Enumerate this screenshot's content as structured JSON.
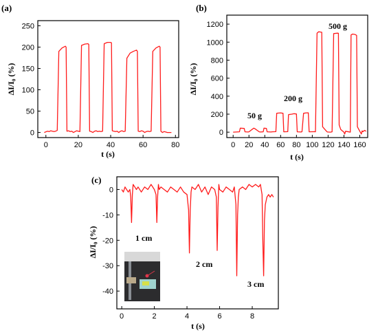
{
  "chart_data": [
    {
      "type": "line",
      "panel_label": "(a)",
      "xlabel": "t (s)",
      "ylabel": "ΔI/I₀ (%)",
      "xlim": [
        -5,
        82
      ],
      "ylim": [
        -12,
        262
      ],
      "xticks": [
        0,
        20,
        40,
        60,
        80
      ],
      "yticks": [
        0,
        50,
        100,
        150,
        200,
        250
      ],
      "color": "#ff1a1a",
      "grid": false,
      "series": [
        {
          "x": [
            -1,
            1,
            2,
            3,
            4,
            5,
            6,
            7,
            8,
            10,
            12,
            12.5,
            13,
            14,
            15,
            16,
            17,
            18,
            19,
            20,
            21,
            22,
            24,
            26,
            26.5,
            27,
            28,
            29,
            30,
            31,
            32,
            33,
            34,
            35,
            36,
            38,
            40,
            40.5,
            41,
            42,
            43,
            44,
            45,
            46,
            47,
            48,
            49,
            50,
            52,
            54,
            56,
            56.5,
            57,
            58,
            59,
            60,
            61,
            62,
            63,
            64,
            65,
            66,
            68,
            70,
            70.5,
            71,
            72,
            73,
            74,
            75,
            76,
            77.5
          ],
          "y": [
            0,
            3,
            2,
            4,
            3,
            2,
            3,
            5,
            190,
            198,
            202,
            200,
            3,
            4,
            2,
            3,
            0,
            2,
            4,
            3,
            2,
            204,
            207,
            208,
            206,
            3,
            2,
            0,
            3,
            4,
            2,
            3,
            2,
            3,
            208,
            211,
            211,
            210,
            4,
            3,
            2,
            3,
            0,
            3,
            4,
            2,
            3,
            174,
            186,
            190,
            193,
            190,
            3,
            2,
            4,
            3,
            0,
            2,
            3,
            2,
            3,
            190,
            198,
            202,
            200,
            3,
            0,
            2,
            1,
            0,
            0,
            0
          ]
        }
      ]
    },
    {
      "type": "line",
      "panel_label": "(b)",
      "xlabel": "t (s)",
      "ylabel": "ΔI/I₀ (%)",
      "xlim": [
        -8,
        170
      ],
      "ylim": [
        -60,
        1300
      ],
      "xticks": [
        0,
        20,
        40,
        60,
        80,
        100,
        120,
        140,
        160
      ],
      "yticks": [
        0,
        200,
        400,
        600,
        800,
        1000,
        1200
      ],
      "color": "#ff1a1a",
      "grid": false,
      "annotations": [
        "50 g",
        "200 g",
        "500 g"
      ],
      "series": [
        {
          "x": [
            0,
            4,
            8,
            9,
            14,
            15,
            19,
            20,
            26,
            27,
            33,
            34,
            38,
            39,
            42,
            43,
            48,
            49,
            54,
            55,
            57,
            60,
            63,
            64,
            69,
            70,
            74,
            77,
            80,
            81,
            86,
            87,
            89,
            92,
            95,
            96,
            103,
            104,
            106,
            108,
            112,
            113,
            118,
            119,
            123,
            125,
            127,
            132,
            133,
            134,
            136,
            140,
            141,
            142,
            148,
            149,
            151,
            154,
            156,
            157,
            160,
            162,
            163,
            164,
            166,
            168
          ],
          "y": [
            0,
            2,
            4,
            45,
            42,
            4,
            2,
            4,
            45,
            42,
            4,
            2,
            4,
            45,
            42,
            4,
            2,
            4,
            6,
            210,
            212,
            214,
            210,
            4,
            6,
            195,
            200,
            205,
            202,
            4,
            2,
            6,
            210,
            214,
            215,
            4,
            6,
            4,
            1100,
            1115,
            1110,
            60,
            10,
            2,
            0,
            4,
            1095,
            1100,
            1098,
            80,
            30,
            0,
            -20,
            10,
            0,
            1080,
            1090,
            1085,
            1075,
            60,
            10,
            -20,
            15,
            5,
            20,
            10
          ]
        }
      ]
    },
    {
      "type": "line",
      "panel_label": "(c)",
      "xlabel": "t (s)",
      "ylabel": "ΔI/I₀ (%)",
      "xlim": [
        -0.3,
        9.6
      ],
      "ylim": [
        -47,
        5
      ],
      "xticks": [
        0,
        2,
        4,
        6,
        8
      ],
      "yticks": [
        0,
        -10,
        -20,
        -30,
        -40
      ],
      "color": "#ff1a1a",
      "grid": false,
      "annotations": [
        "1 cm",
        "2 cm",
        "3 cm"
      ],
      "series": [
        {
          "x": [
            0,
            0.1,
            0.2,
            0.3,
            0.4,
            0.5,
            0.55,
            0.6,
            0.65,
            0.7,
            0.8,
            0.9,
            1.0,
            1.2,
            1.4,
            1.6,
            1.8,
            2.0,
            2.1,
            2.15,
            2.2,
            2.25,
            2.3,
            2.4,
            2.6,
            2.8,
            3.0,
            3.2,
            3.4,
            3.6,
            3.8,
            4.0,
            4.1,
            4.15,
            4.2,
            4.25,
            4.3,
            4.5,
            4.7,
            4.9,
            5.1,
            5.3,
            5.5,
            5.7,
            5.8,
            5.85,
            5.9,
            5.95,
            6.0,
            6.2,
            6.4,
            6.6,
            6.8,
            6.9,
            7.0,
            7.05,
            7.1,
            7.15,
            7.2,
            7.4,
            7.6,
            7.8,
            8.0,
            8.2,
            8.4,
            8.5,
            8.6,
            8.65,
            8.7,
            8.75,
            8.8,
            8.9,
            9.0,
            9.1,
            9.2,
            9.3
          ],
          "y": [
            0,
            -1,
            1,
            0,
            -1,
            0,
            -3,
            -13,
            -2,
            2,
            1,
            0,
            1,
            -1,
            1,
            0,
            2,
            0,
            -2,
            -13,
            -3,
            2,
            0,
            1,
            0,
            -1,
            1,
            0,
            -1,
            1,
            -1,
            -2,
            -8,
            -25,
            -8,
            -1,
            1,
            0,
            2,
            -1,
            1,
            -2,
            1,
            0,
            -3,
            -24,
            -7,
            2,
            0,
            -1,
            1,
            0,
            -1,
            1,
            -6,
            -34,
            -10,
            -3,
            0,
            1,
            0,
            2,
            1,
            2,
            1,
            2,
            -2,
            -20,
            -34,
            -12,
            -6,
            -3,
            -2,
            -3,
            -2,
            -3
          ]
        }
      ]
    }
  ]
}
